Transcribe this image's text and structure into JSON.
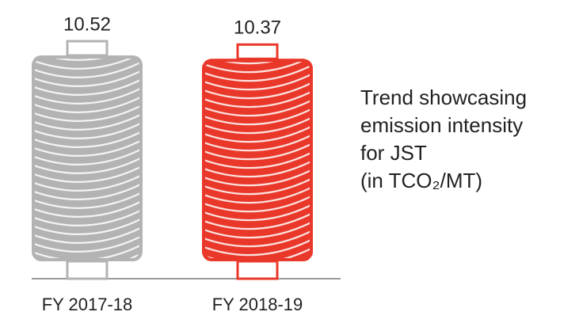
{
  "chart_data": {
    "type": "pictorial-bar",
    "title": [
      "Trend showcasing",
      "emission intensity",
      "for JST",
      "(in TCO₂/MT)"
    ],
    "categories": [
      "FY 2017-18",
      "FY 2018-19"
    ],
    "values": [
      10.52,
      10.37
    ],
    "colors": [
      "#b3b3b3",
      "#e9382a"
    ]
  }
}
